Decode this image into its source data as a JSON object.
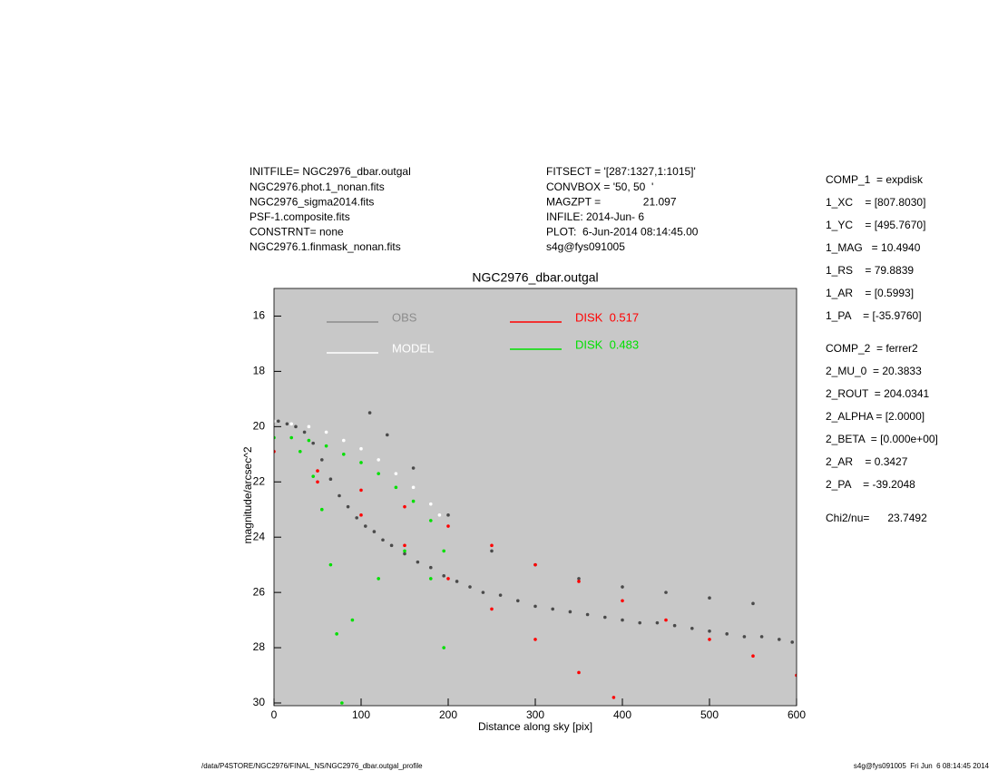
{
  "header": {
    "left": [
      "INITFILE= NGC2976_dbar.outgal",
      "NGC2976.phot.1_nonan.fits",
      "NGC2976_sigma2014.fits",
      "PSF-1.composite.fits",
      "CONSTRNT= none",
      "NGC2976.1.finmask_nonan.fits"
    ],
    "middle": [
      "FITSECT = '[287:1327,1:1015]'",
      "CONVBOX = '50, 50  '",
      "MAGZPT =              21.097",
      "INFILE: 2014-Jun- 6",
      "PLOT:  6-Jun-2014 08:14:45.00",
      "s4g@fys091005"
    ]
  },
  "parameters": {
    "comp1": [
      "COMP_1  = expdisk",
      "1_XC    = [807.8030]",
      "1_YC    = [495.7670]",
      "1_MAG   = 10.4940",
      "1_RS    = 79.8839",
      "1_AR    = [0.5993]",
      "1_PA    = [-35.9760]"
    ],
    "comp2": [
      "COMP_2  = ferrer2",
      "2_MU_0  = 20.3833",
      "2_ROUT  = 204.0341",
      "2_ALPHA = [2.0000]",
      "2_BETA  = [0.000e+00]",
      "2_AR    = 0.3427",
      "2_PA    = -39.2048"
    ],
    "chi2": "Chi2/nu=      23.7492"
  },
  "footer": {
    "left": "/data/P4STORE/NGC2976/FINAL_NS/NGC2976_dbar.outgal_profile",
    "right": "s4g@fys091005  Fri Jun  6 08:14:45 2014"
  },
  "chart_data": {
    "type": "scatter",
    "title": "NGC2976_dbar.outgal",
    "x_label": "Distance along sky [pix]",
    "y_label": "magnitude/arcsec^2",
    "xlim": [
      0,
      600
    ],
    "ylim": [
      30,
      15
    ],
    "xticks": [
      0,
      100,
      200,
      300,
      400,
      500,
      600
    ],
    "yticks": [
      16,
      18,
      20,
      22,
      24,
      26,
      28,
      30
    ],
    "background": "#c8c8c8",
    "series": [
      {
        "name": "OBS",
        "color": "#4a4a4a",
        "x": [
          5,
          15,
          25,
          35,
          45,
          55,
          65,
          75,
          85,
          95,
          105,
          115,
          125,
          135,
          150,
          165,
          180,
          195,
          210,
          225,
          240,
          260,
          280,
          300,
          320,
          340,
          360,
          380,
          400,
          420,
          440,
          460,
          480,
          500,
          520,
          540,
          560,
          580,
          595,
          110,
          130,
          160,
          200,
          250,
          300,
          350,
          400,
          450,
          500,
          550
        ],
        "values": [
          19.8,
          19.9,
          20.0,
          20.2,
          20.6,
          21.2,
          21.9,
          22.5,
          22.9,
          23.3,
          23.6,
          23.8,
          24.1,
          24.3,
          24.6,
          24.9,
          25.1,
          25.4,
          25.6,
          25.8,
          26.0,
          26.1,
          26.3,
          26.5,
          26.6,
          26.7,
          26.8,
          26.9,
          27.0,
          27.1,
          27.1,
          27.2,
          27.3,
          27.4,
          27.5,
          27.6,
          27.6,
          27.7,
          27.8,
          19.5,
          20.3,
          21.5,
          23.2,
          24.5,
          25.0,
          25.5,
          25.8,
          26.0,
          26.2,
          26.4
        ]
      },
      {
        "name": "MODEL",
        "color": "#ffffff",
        "x": [
          0,
          20,
          40,
          60,
          80,
          100,
          120,
          140,
          160,
          180,
          190
        ],
        "values": [
          19.8,
          19.9,
          20.0,
          20.2,
          20.5,
          20.8,
          21.2,
          21.7,
          22.2,
          22.8,
          23.2
        ]
      },
      {
        "name": "DISK  0.517",
        "color": "#ff0000",
        "x": [
          0,
          50,
          100,
          150,
          200,
          250,
          300,
          350,
          400,
          450,
          500,
          550,
          600,
          50,
          100,
          150,
          200,
          250,
          300,
          350,
          390
        ],
        "values": [
          20.9,
          21.6,
          22.3,
          22.9,
          23.6,
          24.3,
          25.0,
          25.6,
          26.3,
          27.0,
          27.7,
          28.3,
          29.0,
          22.0,
          23.2,
          24.3,
          25.5,
          26.6,
          27.7,
          28.9,
          29.8
        ]
      },
      {
        "name": "DISK  0.483",
        "color": "#00e000",
        "x": [
          0,
          20,
          40,
          60,
          80,
          100,
          120,
          140,
          160,
          180,
          195,
          30,
          45,
          55,
          65,
          72,
          78,
          90,
          120,
          150,
          180,
          195
        ],
        "values": [
          20.4,
          20.4,
          20.5,
          20.7,
          21.0,
          21.3,
          21.7,
          22.2,
          22.7,
          23.4,
          24.5,
          20.9,
          21.8,
          23.0,
          25.0,
          27.5,
          30.0,
          27,
          25.5,
          24.5,
          25.5,
          28.0
        ]
      }
    ]
  }
}
